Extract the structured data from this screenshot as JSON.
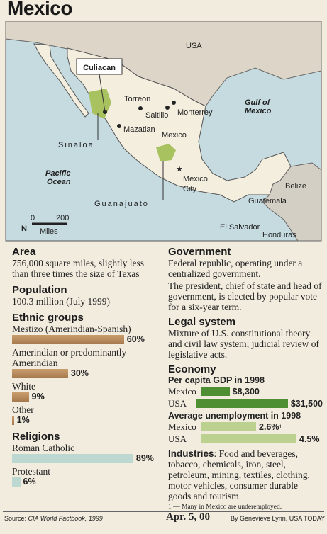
{
  "title": "Mexico",
  "map": {
    "labels": [
      "USA",
      "Culiacan",
      "Torreon",
      "Saltillo",
      "Monterrey",
      "Gulf of",
      "Mexico",
      "Mazatlan",
      "Mexico",
      "Sinaloa",
      "Pacific",
      "Ocean",
      "Mexico",
      "City",
      "Guanajuato",
      "Belize",
      "Guatemala",
      "El Salvador",
      "Honduras",
      "0",
      "200",
      "N",
      "Miles"
    ]
  },
  "area": {
    "heading": "Area",
    "text": "756,000 square miles, slightly less than three times the size of Texas"
  },
  "population": {
    "heading": "Population",
    "text": "100.3 million (July 1999)"
  },
  "ethnic_groups": {
    "heading": "Ethnic groups",
    "categories": [
      "Mestizo (Amerindian-Spanish)",
      "Amerindian or predominantly Amerindian",
      "White",
      "Other"
    ],
    "values": [
      60,
      30,
      9,
      1
    ],
    "value_labels": [
      "60%",
      "30%",
      "9%",
      "1%"
    ]
  },
  "religions": {
    "heading": "Religions",
    "categories": [
      "Roman Catholic",
      "Protestant"
    ],
    "values": [
      89,
      6
    ],
    "value_labels": [
      "89%",
      "6%"
    ]
  },
  "government": {
    "heading": "Government",
    "paragraphs": [
      "Federal republic, operating under a centralized government.",
      "The president, chief of state and head of government, is elected by popular vote for a six-year term."
    ]
  },
  "legal_system": {
    "heading": "Legal system",
    "text": "Mixture of U.S. constitutional theory and civil law system; judicial review of legislative acts."
  },
  "economy": {
    "heading": "Economy",
    "gdp": {
      "title": "Per capita GDP in 1998",
      "categories": [
        "Mexico",
        "USA"
      ],
      "values": [
        8300,
        31500
      ],
      "value_labels": [
        "$8,300",
        "$31,500"
      ]
    },
    "unemployment": {
      "title": "Average unemployment in 1998",
      "categories": [
        "Mexico",
        "USA"
      ],
      "values": [
        2.6,
        4.5
      ],
      "value_labels": [
        "2.6%",
        "4.5%"
      ],
      "footnote_mark": "1"
    },
    "industries": {
      "label": "Industries",
      "text": ": Food and beverages, tobacco, chemicals, iron, steel, petroleum, mining, textiles, clothing, motor vehicles, consumer durable goods and tourism."
    },
    "footnote": "1 — Many in Mexico are underemployed."
  },
  "footer": {
    "source_label": "Source:",
    "source": "CIA World Factbook, 1999",
    "date": "Apr. 5, 00",
    "byline": "By Genevieve Lynn, USA TODAY"
  }
}
